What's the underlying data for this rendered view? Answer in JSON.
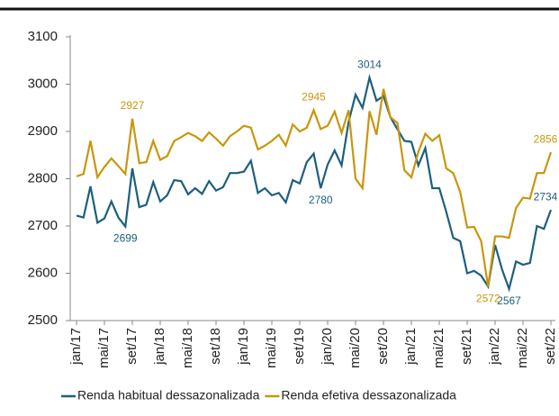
{
  "chart_data": {
    "type": "line",
    "categories": [
      "jan/17",
      null,
      null,
      null,
      "mai/17",
      null,
      null,
      null,
      "set/17",
      null,
      null,
      null,
      "jan/18",
      null,
      null,
      null,
      "mai/18",
      null,
      null,
      null,
      "set/18",
      null,
      null,
      null,
      "jan/19",
      null,
      null,
      null,
      "mai/19",
      null,
      null,
      null,
      "set/19",
      null,
      null,
      null,
      "jan/20",
      null,
      null,
      null,
      "mai/20",
      null,
      null,
      null,
      "set/20",
      null,
      null,
      null,
      "jan/21",
      null,
      null,
      null,
      "mai/21",
      null,
      null,
      null,
      "set/21",
      null,
      null,
      null,
      "jan/22",
      null,
      null,
      null,
      "mai/22",
      null,
      null,
      null,
      "set/22"
    ],
    "series": [
      {
        "name": "Renda habitual dessazonalizada",
        "color": "#1d5f7f",
        "values": [
          2722,
          2718,
          2784,
          2707,
          2716,
          2752,
          2718,
          2699,
          2822,
          2740,
          2745,
          2793,
          2752,
          2765,
          2797,
          2795,
          2767,
          2780,
          2768,
          2795,
          2775,
          2782,
          2812,
          2812,
          2815,
          2838,
          2770,
          2780,
          2765,
          2770,
          2750,
          2797,
          2790,
          2835,
          2853,
          2780,
          2830,
          2860,
          2828,
          2920,
          2978,
          2950,
          3014,
          2965,
          2975,
          2930,
          2905,
          2880,
          2878,
          2828,
          2865,
          2780,
          2780,
          2730,
          2675,
          2668,
          2600,
          2605,
          2595,
          2572,
          2660,
          2608,
          2567,
          2625,
          2618,
          2622,
          2700,
          2694,
          2734
        ],
        "value_labels": [
          null,
          null,
          null,
          null,
          null,
          null,
          null,
          "2699",
          null,
          null,
          null,
          null,
          null,
          null,
          null,
          null,
          null,
          null,
          null,
          null,
          null,
          null,
          null,
          null,
          null,
          null,
          null,
          null,
          null,
          null,
          null,
          null,
          null,
          null,
          null,
          "2780",
          null,
          null,
          null,
          null,
          null,
          null,
          "3014",
          null,
          null,
          null,
          null,
          null,
          null,
          null,
          null,
          null,
          null,
          null,
          null,
          null,
          null,
          null,
          null,
          null,
          null,
          null,
          "2567",
          null,
          null,
          null,
          null,
          null,
          "2734"
        ]
      },
      {
        "name": "Renda efetiva dessazonalizada",
        "color": "#c8960e",
        "values": [
          2805,
          2810,
          2880,
          2803,
          2825,
          2843,
          2827,
          2810,
          2927,
          2833,
          2835,
          2880,
          2840,
          2848,
          2880,
          2888,
          2897,
          2890,
          2880,
          2898,
          2885,
          2870,
          2890,
          2900,
          2912,
          2908,
          2862,
          2870,
          2880,
          2893,
          2870,
          2915,
          2900,
          2908,
          2945,
          2905,
          2912,
          2942,
          2897,
          2945,
          2800,
          2780,
          2943,
          2893,
          2990,
          2930,
          2918,
          2818,
          2803,
          2857,
          2895,
          2880,
          2892,
          2822,
          2812,
          2772,
          2697,
          2698,
          2668,
          2572,
          2678,
          2678,
          2675,
          2738,
          2760,
          2758,
          2812,
          2812,
          2856
        ],
        "value_labels": [
          null,
          null,
          null,
          null,
          null,
          null,
          null,
          null,
          "2927",
          null,
          null,
          null,
          null,
          null,
          null,
          null,
          null,
          null,
          null,
          null,
          null,
          null,
          null,
          null,
          null,
          null,
          null,
          null,
          null,
          null,
          null,
          null,
          null,
          null,
          "2945",
          null,
          null,
          null,
          null,
          null,
          null,
          null,
          null,
          null,
          null,
          null,
          null,
          null,
          null,
          null,
          null,
          null,
          null,
          null,
          null,
          null,
          null,
          null,
          null,
          "2572",
          null,
          null,
          null,
          null,
          null,
          null,
          null,
          null,
          "2856"
        ]
      }
    ],
    "ylim": [
      2500,
      3100
    ],
    "yticks": [
      2500,
      2600,
      2700,
      2800,
      2900,
      3000,
      3100
    ],
    "grid": false
  }
}
